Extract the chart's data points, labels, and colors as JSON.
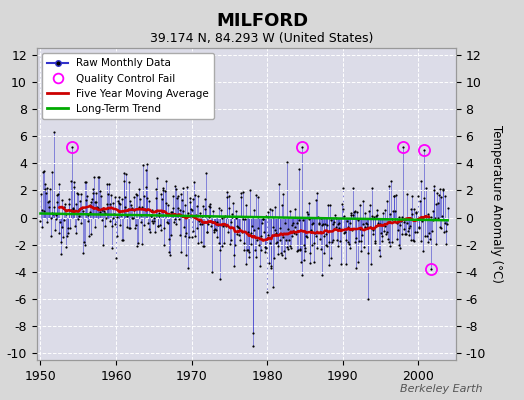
{
  "title": "MILFORD",
  "subtitle": "39.174 N, 84.293 W (United States)",
  "attribution": "Berkeley Earth",
  "ylabel_right": "Temperature Anomaly (°C)",
  "xlim": [
    1949.5,
    2005.0
  ],
  "ylim": [
    -10.5,
    12.5
  ],
  "yticks": [
    -10,
    -8,
    -6,
    -4,
    -2,
    0,
    2,
    4,
    6,
    8,
    10,
    12
  ],
  "xticks": [
    1950,
    1960,
    1970,
    1980,
    1990,
    2000
  ],
  "background_color": "#d8d8d8",
  "plot_bg_color": "#dcdce8",
  "grid_color": "#ffffff",
  "raw_line_color": "#3333cc",
  "raw_dot_color": "#000000",
  "ma_color": "#cc0000",
  "trend_color": "#00aa00",
  "qc_color": "#ff00ff",
  "seed": 12345,
  "n_months": 648,
  "start_year": 1950,
  "moving_avg_window": 60
}
